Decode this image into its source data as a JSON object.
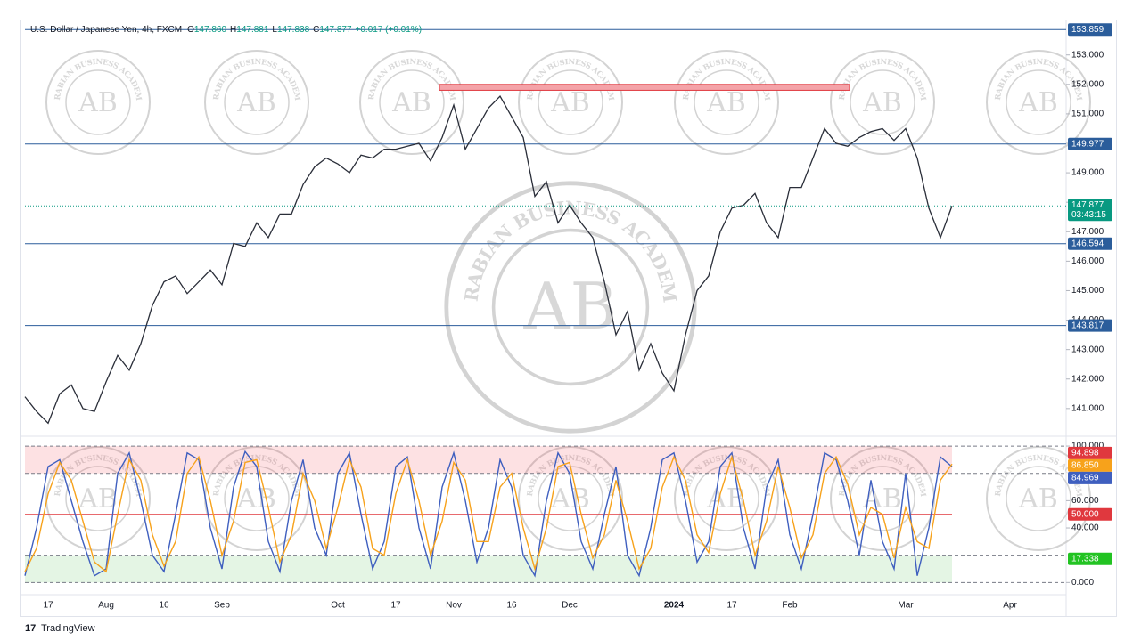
{
  "header": {
    "symbol": "U.S. Dollar / Japanese Yen, 4h, FXCM",
    "ohlc": [
      {
        "key": "O",
        "value": "147.860"
      },
      {
        "key": "H",
        "value": "147.881"
      },
      {
        "key": "L",
        "value": "147.838"
      },
      {
        "key": "C",
        "value": "147.877"
      }
    ],
    "change": "+0.017 (+0.01%)"
  },
  "watermark": {
    "logo": "AB",
    "text": "ARABIAN BUSINESS ACADEMY"
  },
  "footer": "TradingView",
  "chart_data": [
    {
      "type": "line",
      "color": "#2a2e39",
      "categories": [
        null,
        null,
        "17",
        null,
        null,
        null,
        null,
        "Aug",
        null,
        null,
        null,
        null,
        "16",
        null,
        null,
        null,
        null,
        "Sep",
        null,
        null,
        null,
        null,
        null,
        null,
        null,
        null,
        null,
        "Oct",
        null,
        null,
        null,
        null,
        "17",
        null,
        null,
        null,
        null,
        "Nov",
        null,
        null,
        null,
        null,
        "16",
        null,
        null,
        null,
        null,
        "Dec",
        null,
        null,
        null,
        null,
        null,
        null,
        null,
        null,
        "2024",
        null,
        null,
        null,
        null,
        "17",
        null,
        null,
        null,
        null,
        "Feb",
        null,
        null,
        null,
        null,
        null,
        null,
        null,
        null,
        null,
        "Mar",
        null,
        null,
        null,
        null,
        null,
        null,
        null,
        null,
        "Apr",
        null,
        null,
        null,
        null
      ],
      "values": [
        141.4,
        140.9,
        140.5,
        141.5,
        141.8,
        141.0,
        140.9,
        141.9,
        142.8,
        142.3,
        143.2,
        144.5,
        145.3,
        145.5,
        144.9,
        145.3,
        145.7,
        145.2,
        146.6,
        146.5,
        147.3,
        146.8,
        147.6,
        147.6,
        148.6,
        149.2,
        149.5,
        149.3,
        149.0,
        149.6,
        149.5,
        149.8,
        149.8,
        149.9,
        150.0,
        149.4,
        150.2,
        151.3,
        149.8,
        150.5,
        151.2,
        151.6,
        150.9,
        150.2,
        148.2,
        148.7,
        147.3,
        147.9,
        147.3,
        146.8,
        145.3,
        143.5,
        144.3,
        142.3,
        143.2,
        142.2,
        141.6,
        143.5,
        145.0,
        145.5,
        147.0,
        147.8,
        147.9,
        148.3,
        147.3,
        146.8,
        148.5,
        148.5,
        149.5,
        150.5,
        150.0,
        149.9,
        150.2,
        150.4,
        150.5,
        150.1,
        150.5,
        149.5,
        147.8,
        146.8,
        147.877,
        null,
        null,
        null,
        null,
        null,
        null,
        null,
        null,
        null
      ],
      "ylim": [
        140.3,
        154.2
      ],
      "yticks": [
        {
          "value": 141,
          "label": "141.000"
        },
        {
          "value": 142,
          "label": "142.000"
        },
        {
          "value": 143,
          "label": "143.000"
        },
        {
          "value": 144,
          "label": "144.000"
        },
        {
          "value": 145,
          "label": "145.000"
        },
        {
          "value": 146,
          "label": "146.000"
        },
        {
          "value": 147,
          "label": "147.000"
        },
        {
          "value": 148,
          "label": "148.000"
        },
        {
          "value": 149,
          "label": "149.000"
        },
        {
          "value": 150,
          "label": "150.000"
        },
        {
          "value": 151,
          "label": "151.000"
        },
        {
          "value": 152,
          "label": "152.000"
        },
        {
          "value": 153,
          "label": "153.000"
        }
      ],
      "levels": [
        153.859,
        149.977,
        146.594,
        143.817
      ],
      "level_color": "#2b5d9b",
      "zone": {
        "from": 151.8,
        "to": 152.0,
        "color": "#f4a3a8"
      },
      "last_value": 147.877,
      "last_color": "#089981",
      "countdown": "03:43:15"
    },
    {
      "type": "line",
      "series": [
        {
          "color": "#3f5fbf",
          "values": [
            5,
            40,
            85,
            90,
            60,
            30,
            5,
            10,
            80,
            95,
            60,
            20,
            8,
            50,
            95,
            90,
            40,
            10,
            70,
            96,
            85,
            30,
            8,
            60,
            90,
            40,
            20,
            80,
            95,
            50,
            10,
            30,
            85,
            92,
            40,
            10,
            70,
            95,
            60,
            15,
            40,
            90,
            70,
            20,
            5,
            60,
            95,
            80,
            30,
            10,
            50,
            85,
            20,
            5,
            40,
            90,
            95,
            60,
            15,
            30,
            85,
            95,
            40,
            10,
            70,
            90,
            35,
            10,
            50,
            95,
            90,
            60,
            20,
            75,
            30,
            10,
            80,
            5,
            40,
            92,
            84.969
          ]
        },
        {
          "color": "#f7a21b",
          "values": [
            8,
            25,
            65,
            88,
            75,
            45,
            15,
            8,
            50,
            90,
            75,
            35,
            12,
            30,
            80,
            92,
            60,
            20,
            45,
            88,
            90,
            55,
            15,
            35,
            80,
            60,
            25,
            55,
            90,
            70,
            25,
            20,
            65,
            90,
            60,
            20,
            45,
            88,
            75,
            30,
            30,
            70,
            80,
            40,
            10,
            40,
            85,
            88,
            50,
            18,
            35,
            75,
            45,
            10,
            25,
            70,
            92,
            75,
            35,
            22,
            65,
            92,
            60,
            20,
            45,
            85,
            55,
            18,
            35,
            80,
            92,
            72,
            35,
            55,
            50,
            18,
            55,
            30,
            25,
            75,
            86.85
          ]
        }
      ],
      "ylim": [
        -5,
        102
      ],
      "yticks": [
        {
          "value": 0,
          "label": "0.000"
        },
        {
          "value": 40,
          "label": "40.000"
        },
        {
          "value": 60,
          "label": "60.000"
        },
        {
          "value": 100,
          "label": "100.000"
        }
      ],
      "bands": [
        {
          "from": 80,
          "to": 100,
          "color": "rgba(242,54,69,0.15)"
        },
        {
          "from": 0,
          "to": 20,
          "color": "rgba(34,171,34,0.12)"
        }
      ],
      "mid_level": 50,
      "mid_color": "#e0383e",
      "axis_labels": [
        {
          "value": 94.898,
          "color": "#e0383e"
        },
        {
          "value": 86.85,
          "label": "86.850",
          "color": "#f7a21b"
        },
        {
          "value": 84.969,
          "color": "#3f5fbf"
        },
        {
          "value": 50,
          "label": "50.000",
          "color": "#e0383e"
        },
        {
          "value": 17.338,
          "color": "#22c322"
        }
      ]
    }
  ]
}
